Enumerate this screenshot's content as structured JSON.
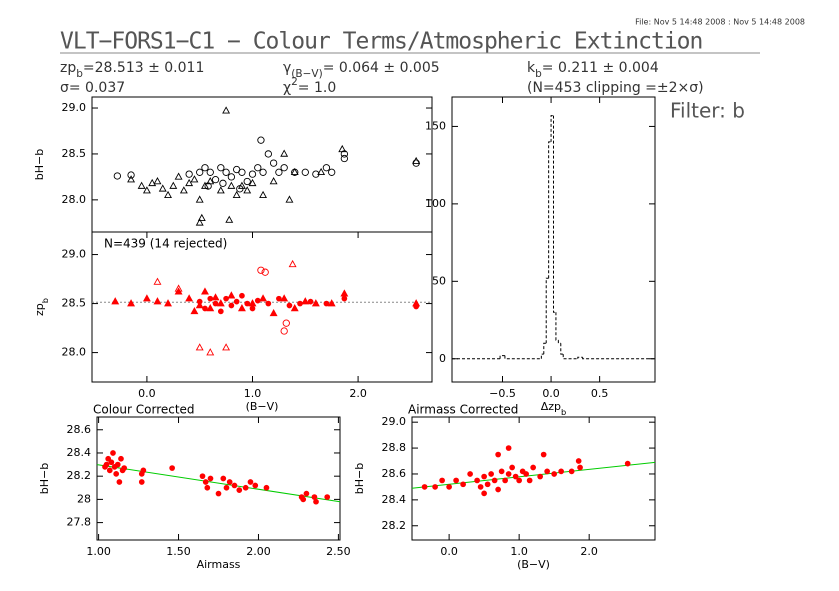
{
  "header": {
    "file_stamp": "File: Nov  5 14:48 2008 : Nov  5 14:48 2008",
    "title": "VLT−FORS1−C1 − Colour Terms/Atmospheric Extinction",
    "params": [
      [
        {
          "text": "zp"
        },
        {
          "text": "b",
          "sub": true
        },
        {
          "text": "=28.513 ± 0.011"
        }
      ],
      [
        {
          "text": "σ= 0.037"
        }
      ],
      [
        {
          "text": "γ"
        },
        {
          "text": "(B−V)",
          "sub": true
        },
        {
          "text": "= 0.064 ± 0.005"
        }
      ],
      [
        {
          "text": "χ"
        },
        {
          "text": "2",
          "sup": true
        },
        {
          "text": "=   1.0"
        }
      ],
      [
        {
          "text": "k"
        },
        {
          "text": "b",
          "sub": true
        },
        {
          "text": "= 0.211 ± 0.004"
        }
      ],
      [
        {
          "text": "(N=453 clipping =±2×σ)"
        }
      ]
    ],
    "filter": "Filter: b"
  },
  "chart_data": [
    {
      "type": "scatter",
      "ylabel": "bH−b",
      "xlim": [
        -0.52,
        2.7
      ],
      "ylim": [
        27.65,
        29.12
      ],
      "yticks": [
        {
          "value": 28.0,
          "label": "28.0"
        },
        {
          "value": 28.5,
          "label": "28.5"
        },
        {
          "value": 29.0,
          "label": "29.0"
        }
      ],
      "series": [
        {
          "marker": "circle",
          "filled": false,
          "color": "#000000",
          "x": [
            -0.28,
            -0.15,
            0.5,
            0.55,
            0.6,
            0.65,
            0.7,
            0.75,
            0.8,
            0.85,
            0.9,
            0.95,
            1.0,
            1.05,
            1.08,
            1.1,
            1.15,
            1.2,
            1.25,
            1.3,
            1.4,
            1.5,
            1.6,
            1.7,
            1.75,
            1.87,
            1.87,
            2.55,
            0.58,
            0.72,
            0.88,
            0.4
          ],
          "values": [
            28.26,
            28.27,
            28.3,
            28.35,
            28.3,
            28.22,
            28.35,
            28.3,
            28.25,
            28.33,
            28.3,
            28.2,
            28.28,
            28.35,
            28.65,
            28.3,
            28.5,
            28.4,
            28.3,
            28.35,
            28.3,
            28.3,
            28.28,
            28.35,
            28.3,
            28.45,
            28.5,
            28.4,
            28.15,
            28.18,
            28.12,
            28.28
          ]
        },
        {
          "marker": "triangle",
          "filled": false,
          "color": "#000000",
          "x": [
            -0.15,
            -0.05,
            0.0,
            0.05,
            0.1,
            0.15,
            0.2,
            0.25,
            0.3,
            0.35,
            0.4,
            0.45,
            0.5,
            0.55,
            0.6,
            0.7,
            0.75,
            0.8,
            0.85,
            0.9,
            0.95,
            1.0,
            1.1,
            1.2,
            1.3,
            1.35,
            1.4,
            0.78,
            0.5,
            0.52,
            1.65,
            1.85,
            2.55
          ],
          "values": [
            28.22,
            28.15,
            28.1,
            28.18,
            28.2,
            28.12,
            28.05,
            28.15,
            28.25,
            28.1,
            28.18,
            28.22,
            28.0,
            28.15,
            28.2,
            28.1,
            28.97,
            28.15,
            28.05,
            28.15,
            28.1,
            28.18,
            28.05,
            28.2,
            28.5,
            28.0,
            28.3,
            27.78,
            27.75,
            27.8,
            28.3,
            28.55,
            28.42
          ]
        }
      ]
    },
    {
      "type": "scatter",
      "annotation": "N=439 (14 rejected)",
      "xlabel": "(B−V)",
      "ylabel": [
        {
          "text": "zp"
        },
        {
          "text": "b",
          "sub": true
        }
      ],
      "xlim": [
        -0.52,
        2.7
      ],
      "ylim": [
        27.7,
        29.23
      ],
      "xticks": [
        {
          "value": 0,
          "label": "0.0"
        },
        {
          "value": 1,
          "label": "1.0"
        },
        {
          "value": 2,
          "label": "2.0"
        }
      ],
      "yticks": [
        {
          "value": 28.0,
          "label": "28.0"
        },
        {
          "value": 28.5,
          "label": "28.5"
        },
        {
          "value": 29.0,
          "label": "29.0"
        }
      ],
      "hline": 28.513,
      "series": [
        {
          "marker": "triangle",
          "filled": true,
          "color": "#ff0000",
          "x": [
            -0.3,
            -0.15,
            0.0,
            0.1,
            0.2,
            0.3,
            0.4,
            0.5,
            0.55,
            0.6,
            0.7,
            0.8,
            0.9,
            1.0,
            1.1,
            1.2,
            1.3,
            1.4,
            1.5,
            1.6,
            1.75,
            1.87,
            2.55,
            0.45,
            0.65
          ],
          "values": [
            28.52,
            28.5,
            28.55,
            28.52,
            28.5,
            28.62,
            28.55,
            28.48,
            28.62,
            28.45,
            28.5,
            28.58,
            28.45,
            28.5,
            28.55,
            28.4,
            28.55,
            28.45,
            28.52,
            28.5,
            28.5,
            28.6,
            28.5,
            28.42,
            28.56
          ]
        },
        {
          "marker": "circle",
          "filled": true,
          "color": "#ff0000",
          "x": [
            0.5,
            0.55,
            0.6,
            0.65,
            0.7,
            0.75,
            0.8,
            0.85,
            0.9,
            0.95,
            1.0,
            1.05,
            1.15,
            1.25,
            1.35,
            1.45,
            1.55,
            1.7,
            1.87,
            2.55
          ],
          "values": [
            28.52,
            28.45,
            28.55,
            28.5,
            28.42,
            28.55,
            28.48,
            28.52,
            28.58,
            28.5,
            28.45,
            28.53,
            28.5,
            28.55,
            28.48,
            28.5,
            28.52,
            28.5,
            28.55,
            28.47
          ]
        },
        {
          "marker": "triangle",
          "filled": false,
          "color": "#ff0000",
          "x": [
            0.1,
            0.5,
            0.75,
            0.6,
            1.38,
            0.3
          ],
          "values": [
            28.72,
            28.05,
            28.05,
            28.0,
            28.9,
            28.65
          ]
        },
        {
          "marker": "circle",
          "filled": false,
          "color": "#ff0000",
          "x": [
            1.08,
            1.3,
            1.32,
            1.12
          ],
          "values": [
            28.84,
            28.22,
            28.3,
            28.82
          ]
        }
      ]
    },
    {
      "type": "histogram",
      "xlabel": [
        {
          "text": "Δzp"
        },
        {
          "text": "b",
          "sub": true
        }
      ],
      "xlim": [
        -1.02,
        1.07
      ],
      "ylim": [
        -15,
        169
      ],
      "xticks": [
        {
          "value": -0.5,
          "label": "−0.5"
        },
        {
          "value": 0,
          "label": "0.0"
        },
        {
          "value": 0.5,
          "label": "0.5"
        }
      ],
      "yticks": [
        0,
        50,
        100,
        150
      ],
      "color": "#000000",
      "dashed": true,
      "bins": [
        -1.02,
        -0.525,
        -0.475,
        -0.1,
        -0.075,
        -0.05,
        -0.025,
        0.0,
        0.025,
        0.05,
        0.075,
        0.1,
        0.125,
        0.275,
        0.325,
        1.07
      ],
      "values": [
        0,
        2,
        0,
        3,
        10,
        52,
        140,
        157,
        30,
        12,
        10,
        3,
        0,
        1,
        0
      ]
    },
    {
      "type": "scatter",
      "title": "Colour Corrected",
      "xlabel": "Airmass",
      "ylabel": "bH−b",
      "xlim": [
        0.99,
        2.51
      ],
      "ylim": [
        27.65,
        28.71
      ],
      "xticks": [
        {
          "value": 1,
          "label": "1.00"
        },
        {
          "value": 1.5,
          "label": "1.50"
        },
        {
          "value": 2,
          "label": "2.00"
        },
        {
          "value": 2.5,
          "label": "2.50"
        }
      ],
      "yticks": [
        27.8,
        28.0,
        28.2,
        28.4,
        28.6
      ],
      "fit_line": {
        "color": "#00cc00",
        "x": [
          0.99,
          2.51
        ],
        "values": [
          28.3,
          27.98
        ]
      },
      "series": [
        {
          "marker": "circle",
          "filled": true,
          "color": "#ff0000",
          "x": [
            1.04,
            1.05,
            1.06,
            1.07,
            1.08,
            1.09,
            1.1,
            1.11,
            1.12,
            1.13,
            1.14,
            1.15,
            1.16,
            1.27,
            1.27,
            1.28,
            1.46,
            1.65,
            1.67,
            1.68,
            1.7,
            1.75,
            1.78,
            1.8,
            1.82,
            1.85,
            1.88,
            1.92,
            1.95,
            1.98,
            2.05,
            2.27,
            2.28,
            2.3,
            2.35,
            2.36,
            2.43
          ],
          "values": [
            28.28,
            28.3,
            28.35,
            28.25,
            28.32,
            28.4,
            28.28,
            28.22,
            28.3,
            28.15,
            28.35,
            28.25,
            28.27,
            28.22,
            28.15,
            28.25,
            28.27,
            28.2,
            28.15,
            28.1,
            28.18,
            28.05,
            28.18,
            28.1,
            28.15,
            28.12,
            28.08,
            28.1,
            28.15,
            28.12,
            28.1,
            28.02,
            28.0,
            28.05,
            28.02,
            27.98,
            28.02
          ]
        }
      ]
    },
    {
      "type": "scatter",
      "title": "Airmass Corrected",
      "xlabel": "(B−V)",
      "ylabel": "bH−b",
      "xlim": [
        -0.53,
        2.94
      ],
      "ylim": [
        28.09,
        29.04
      ],
      "xticks": [
        {
          "value": 0,
          "label": "0.0"
        },
        {
          "value": 1,
          "label": "1.0"
        },
        {
          "value": 2,
          "label": "2.0"
        }
      ],
      "yticks": [
        {
          "value": 28.2,
          "label": "28.2"
        },
        28.4,
        28.6,
        28.8,
        {
          "value": 29.0,
          "label": "29.0"
        }
      ],
      "fit_line": {
        "color": "#00cc00",
        "x": [
          -0.53,
          2.94
        ],
        "values": [
          28.49,
          28.69
        ]
      },
      "series": [
        {
          "marker": "circle",
          "filled": true,
          "color": "#ff0000",
          "x": [
            -0.35,
            -0.2,
            -0.1,
            0.0,
            0.1,
            0.2,
            0.3,
            0.4,
            0.45,
            0.5,
            0.55,
            0.6,
            0.65,
            0.7,
            0.75,
            0.8,
            0.85,
            0.9,
            0.95,
            1.0,
            1.05,
            1.1,
            1.15,
            1.2,
            1.3,
            1.4,
            1.5,
            1.6,
            1.75,
            1.85,
            1.87,
            2.55,
            0.7,
            0.85,
            0.5,
            1.35
          ],
          "values": [
            28.5,
            28.5,
            28.55,
            28.5,
            28.55,
            28.52,
            28.6,
            28.55,
            28.5,
            28.58,
            28.52,
            28.6,
            28.55,
            28.48,
            28.62,
            28.55,
            28.6,
            28.65,
            28.58,
            28.55,
            28.62,
            28.6,
            28.55,
            28.65,
            28.58,
            28.62,
            28.6,
            28.62,
            28.62,
            28.7,
            28.65,
            28.68,
            28.75,
            28.8,
            28.45,
            28.75
          ]
        }
      ]
    }
  ]
}
